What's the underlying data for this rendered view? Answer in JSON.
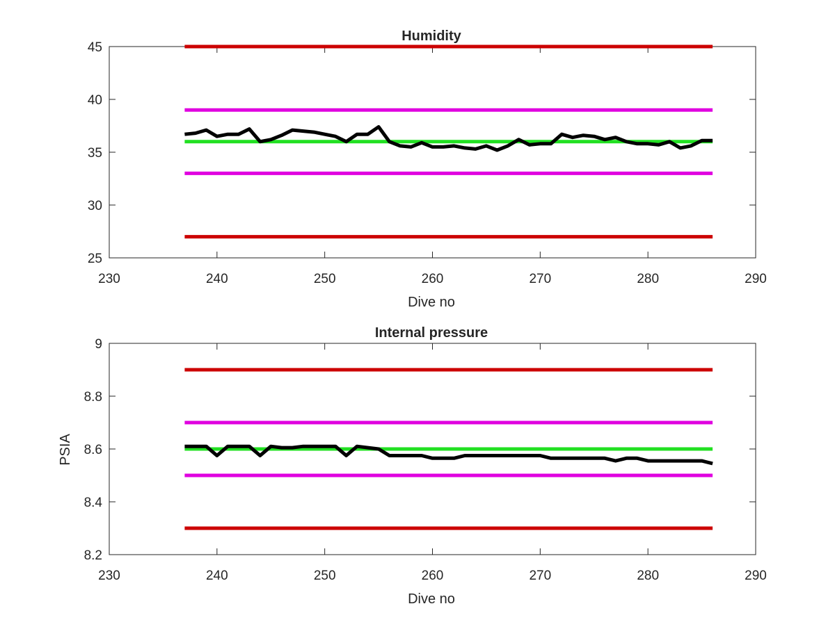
{
  "chart_data": [
    {
      "type": "line",
      "title": "Humidity",
      "xlabel": "Dive no",
      "ylabel": "",
      "xlim": [
        230,
        290
      ],
      "ylim": [
        25,
        45
      ],
      "xticks": [
        "230",
        "240",
        "250",
        "260",
        "270",
        "280",
        "290"
      ],
      "yticks": [
        "25",
        "30",
        "35",
        "40",
        "45"
      ],
      "grid": false,
      "legend": "none",
      "series": [
        {
          "color": "#cc0000",
          "x": [
            237,
            286
          ],
          "values": [
            45,
            45
          ]
        },
        {
          "color": "#e000e0",
          "x": [
            237,
            286
          ],
          "values": [
            39,
            39
          ]
        },
        {
          "color": "#22e022",
          "x": [
            237,
            286
          ],
          "values": [
            36,
            36
          ]
        },
        {
          "color": "#e000e0",
          "x": [
            237,
            286
          ],
          "values": [
            33,
            33
          ]
        },
        {
          "color": "#cc0000",
          "x": [
            237,
            286
          ],
          "values": [
            27,
            27
          ]
        },
        {
          "color": "#000000",
          "x": [
            237,
            238,
            239,
            240,
            241,
            242,
            243,
            244,
            245,
            246,
            247,
            248,
            249,
            250,
            251,
            252,
            253,
            254,
            255,
            256,
            257,
            258,
            259,
            260,
            261,
            262,
            263,
            264,
            265,
            266,
            267,
            268,
            269,
            270,
            271,
            272,
            273,
            274,
            275,
            276,
            277,
            278,
            279,
            280,
            281,
            282,
            283,
            284,
            285,
            286
          ],
          "values": [
            36.7,
            36.8,
            37.1,
            36.5,
            36.7,
            36.7,
            37.2,
            36.0,
            36.2,
            36.6,
            37.1,
            37.0,
            36.9,
            36.7,
            36.5,
            36.0,
            36.7,
            36.7,
            37.4,
            36.0,
            35.6,
            35.5,
            35.9,
            35.5,
            35.5,
            35.6,
            35.4,
            35.3,
            35.6,
            35.2,
            35.6,
            36.2,
            35.7,
            35.8,
            35.8,
            36.7,
            36.4,
            36.6,
            36.5,
            36.2,
            36.4,
            36.0,
            35.8,
            35.8,
            35.7,
            36.0,
            35.4,
            35.6,
            36.1,
            36.1
          ]
        }
      ]
    },
    {
      "type": "line",
      "title": "Internal pressure",
      "xlabel": "Dive no",
      "ylabel": "PSIA",
      "xlim": [
        230,
        290
      ],
      "ylim": [
        8.2,
        9.0
      ],
      "xticks": [
        "230",
        "240",
        "250",
        "260",
        "270",
        "280",
        "290"
      ],
      "yticks": [
        "8.2",
        "8.4",
        "8.6",
        "8.8",
        "9"
      ],
      "grid": false,
      "legend": "none",
      "series": [
        {
          "color": "#cc0000",
          "x": [
            237,
            286
          ],
          "values": [
            8.9,
            8.9
          ]
        },
        {
          "color": "#e000e0",
          "x": [
            237,
            286
          ],
          "values": [
            8.7,
            8.7
          ]
        },
        {
          "color": "#22e022",
          "x": [
            237,
            286
          ],
          "values": [
            8.6,
            8.6
          ]
        },
        {
          "color": "#e000e0",
          "x": [
            237,
            286
          ],
          "values": [
            8.5,
            8.5
          ]
        },
        {
          "color": "#cc0000",
          "x": [
            237,
            286
          ],
          "values": [
            8.3,
            8.3
          ]
        },
        {
          "color": "#000000",
          "x": [
            237,
            238,
            239,
            240,
            241,
            242,
            243,
            244,
            245,
            246,
            247,
            248,
            249,
            250,
            251,
            252,
            253,
            254,
            255,
            256,
            257,
            258,
            259,
            260,
            261,
            262,
            263,
            264,
            265,
            266,
            267,
            268,
            269,
            270,
            271,
            272,
            273,
            274,
            275,
            276,
            277,
            278,
            279,
            280,
            281,
            282,
            283,
            284,
            285,
            286
          ],
          "values": [
            8.61,
            8.61,
            8.61,
            8.575,
            8.61,
            8.61,
            8.61,
            8.575,
            8.61,
            8.605,
            8.605,
            8.61,
            8.61,
            8.61,
            8.61,
            8.575,
            8.61,
            8.605,
            8.6,
            8.575,
            8.575,
            8.575,
            8.575,
            8.565,
            8.565,
            8.565,
            8.575,
            8.575,
            8.575,
            8.575,
            8.575,
            8.575,
            8.575,
            8.575,
            8.565,
            8.565,
            8.565,
            8.565,
            8.565,
            8.565,
            8.555,
            8.565,
            8.565,
            8.555,
            8.555,
            8.555,
            8.555,
            8.555,
            8.555,
            8.545
          ]
        }
      ]
    }
  ]
}
